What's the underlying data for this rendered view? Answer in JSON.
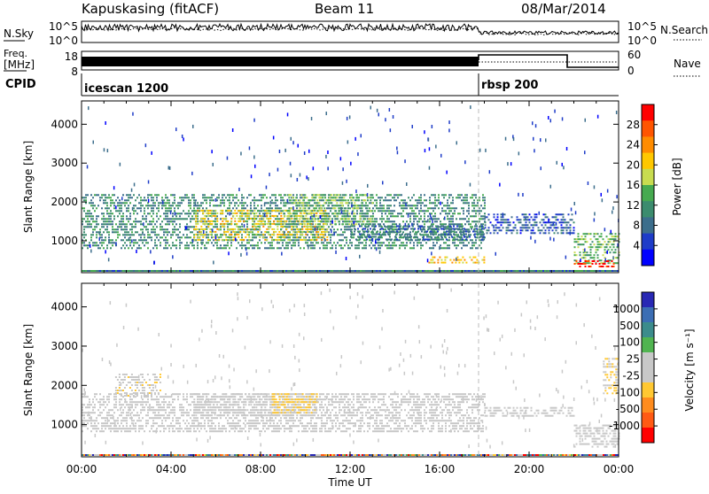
{
  "header": {
    "station": "Kapuskasing (fitACF)",
    "beam": "Beam 11",
    "date": "08/Mar/2014"
  },
  "side_labels": {
    "nsky": "N.Sky",
    "nsearch": "N.Search",
    "freq_line1": "Freq.",
    "freq_line2": "[MHz]",
    "nave": "Nave",
    "cpid": "CPID"
  },
  "noise_panel": {
    "left_ticks": [
      "10^5",
      "10^0"
    ],
    "right_ticks": [
      "10^5",
      "10^0"
    ]
  },
  "freq_panel": {
    "left_ticks": [
      "18",
      "8"
    ],
    "right_ticks": [
      "60",
      "0"
    ]
  },
  "cpid_panel": {
    "segments": [
      {
        "label": "icescan 1200",
        "start_hour": 0,
        "end_hour": 18
      },
      {
        "label": "rbsp 200",
        "start_hour": 18,
        "end_hour": 24
      }
    ]
  },
  "colorbars": {
    "power": {
      "title": "Power [dB]",
      "ticks": [
        "28",
        "24",
        "20",
        "16",
        "12",
        "8",
        "4"
      ],
      "colors": [
        "#ff0000",
        "#ff5500",
        "#ff8c00",
        "#ffc800",
        "#c8dc50",
        "#46aa50",
        "#3c8c6e",
        "#3c6e8c",
        "#1e3cc8",
        "#0000ff"
      ]
    },
    "velocity": {
      "title": "Velocity [m s⁻¹]",
      "ticks": [
        "1000",
        "500",
        "100",
        "25",
        "-25",
        "-100",
        "-500",
        "-1000"
      ],
      "colors": [
        "#2828b4",
        "#3c6eb4",
        "#3c8c8c",
        "#50b450",
        "#c8c8c8",
        "#c8c8c8",
        "#ffc832",
        "#ff8c1e",
        "#ff5a14",
        "#ff0000"
      ]
    }
  },
  "chart_data": [
    {
      "type": "heatmap",
      "title": "",
      "xlabel": "Time UT",
      "ylabel": "Slant Range [km]",
      "x_ticks": [
        "00:00",
        "04:00",
        "08:00",
        "12:00",
        "16:00",
        "20:00",
        "00:00"
      ],
      "y_ticks": [
        1000,
        2000,
        3000,
        4000
      ],
      "xlim_hours": [
        0,
        24
      ],
      "ylim_km": [
        180,
        4600
      ],
      "colorbar": "Power [dB]",
      "color_range": [
        0,
        30
      ],
      "echo_regions": [
        {
          "t_start": 0.0,
          "t_end": 18.0,
          "range_min": 800,
          "range_max": 2200,
          "value": 10
        },
        {
          "t_start": 5.0,
          "t_end": 11.0,
          "range_min": 1000,
          "range_max": 1800,
          "value": 18
        },
        {
          "t_start": 9.0,
          "t_end": 13.0,
          "range_min": 1400,
          "range_max": 2200,
          "value": 14
        },
        {
          "t_start": 12.0,
          "t_end": 18.0,
          "range_min": 1000,
          "range_max": 1400,
          "value": 8
        },
        {
          "t_start": 15.5,
          "t_end": 18.0,
          "range_min": 400,
          "range_max": 600,
          "value": 20
        },
        {
          "t_start": 18.0,
          "t_end": 22.0,
          "range_min": 1200,
          "range_max": 1700,
          "value": 6
        },
        {
          "t_start": 22.0,
          "t_end": 24.0,
          "range_min": 400,
          "range_max": 1200,
          "value": 14
        },
        {
          "t_start": 22.0,
          "t_end": 23.8,
          "range_min": 350,
          "range_max": 500,
          "value": 28
        }
      ]
    },
    {
      "type": "heatmap",
      "title": "",
      "xlabel": "Time UT",
      "ylabel": "Slant Range [km]",
      "x_ticks": [
        "00:00",
        "04:00",
        "08:00",
        "12:00",
        "16:00",
        "20:00",
        "00:00"
      ],
      "y_ticks": [
        1000,
        2000,
        3000,
        4000
      ],
      "xlim_hours": [
        0,
        24
      ],
      "ylim_km": [
        180,
        4600
      ],
      "colorbar": "Velocity [m s⁻¹]",
      "color_range": [
        -1000,
        1000
      ],
      "echo_regions": [
        {
          "t_start": 0.0,
          "t_end": 18.0,
          "range_min": 800,
          "range_max": 1800,
          "value": 0
        },
        {
          "t_start": 1.5,
          "t_end": 3.5,
          "range_min": 1700,
          "range_max": 2300,
          "value": -150
        },
        {
          "t_start": 5.0,
          "t_end": 10.5,
          "range_min": 1200,
          "range_max": 1800,
          "value": 80
        },
        {
          "t_start": 8.5,
          "t_end": 10.5,
          "range_min": 1300,
          "range_max": 1800,
          "value": -300
        },
        {
          "t_start": 18.0,
          "t_end": 22.0,
          "range_min": 1200,
          "range_max": 1450,
          "value": 0
        },
        {
          "t_start": 22.0,
          "t_end": 24.0,
          "range_min": 400,
          "range_max": 1000,
          "value": 0
        },
        {
          "t_start": 23.3,
          "t_end": 24.0,
          "range_min": 1800,
          "range_max": 2700,
          "value": -200
        }
      ]
    }
  ]
}
